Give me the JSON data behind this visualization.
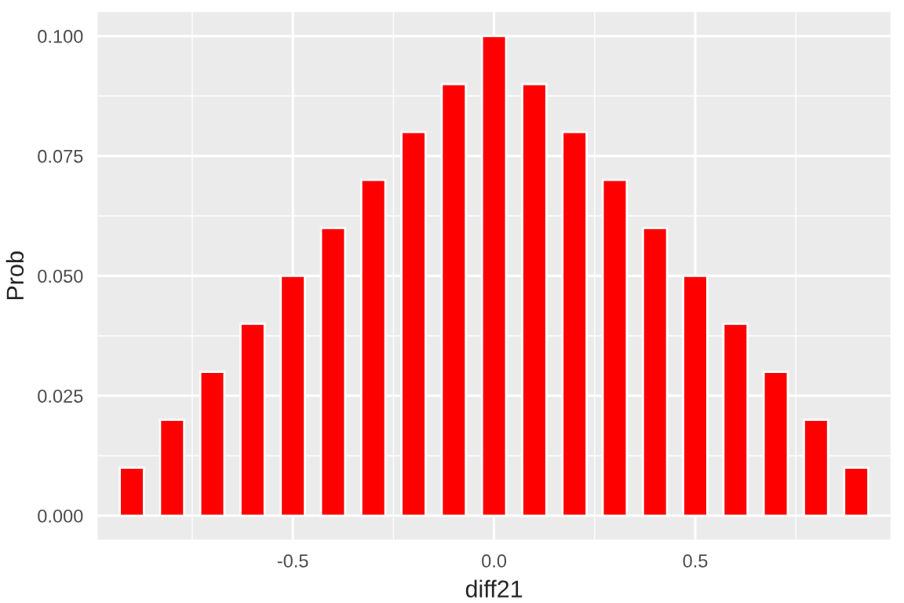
{
  "chart_data": {
    "type": "bar",
    "xlabel": "diff21",
    "ylabel": "Prob",
    "x": [
      -0.9,
      -0.8,
      -0.7,
      -0.6,
      -0.5,
      -0.4,
      -0.3,
      -0.2,
      -0.1,
      0.0,
      0.1,
      0.2,
      0.3,
      0.4,
      0.5,
      0.6,
      0.7,
      0.8,
      0.9
    ],
    "series": [
      {
        "color": "#ff0000",
        "values": [
          0.01,
          0.02,
          0.03,
          0.04,
          0.05,
          0.06,
          0.07,
          0.08,
          0.09,
          0.1,
          0.09,
          0.08,
          0.07,
          0.06,
          0.05,
          0.04,
          0.03,
          0.02,
          0.01
        ]
      }
    ],
    "xlim": [
      -0.985,
      0.985
    ],
    "ylim": [
      -0.005,
      0.105
    ],
    "xticks": [
      {
        "value": -0.5,
        "label": "-0.5"
      },
      {
        "value": 0,
        "label": "0.0"
      },
      {
        "value": 0.5,
        "label": "0.5"
      }
    ],
    "yticks": [
      {
        "value": 0,
        "label": "0.000"
      },
      {
        "value": 0.025,
        "label": "0.025"
      },
      {
        "value": 0.05,
        "label": "0.050"
      },
      {
        "value": 0.075,
        "label": "0.075"
      },
      {
        "value": 0.1,
        "label": "0.100"
      }
    ],
    "grid": true
  }
}
